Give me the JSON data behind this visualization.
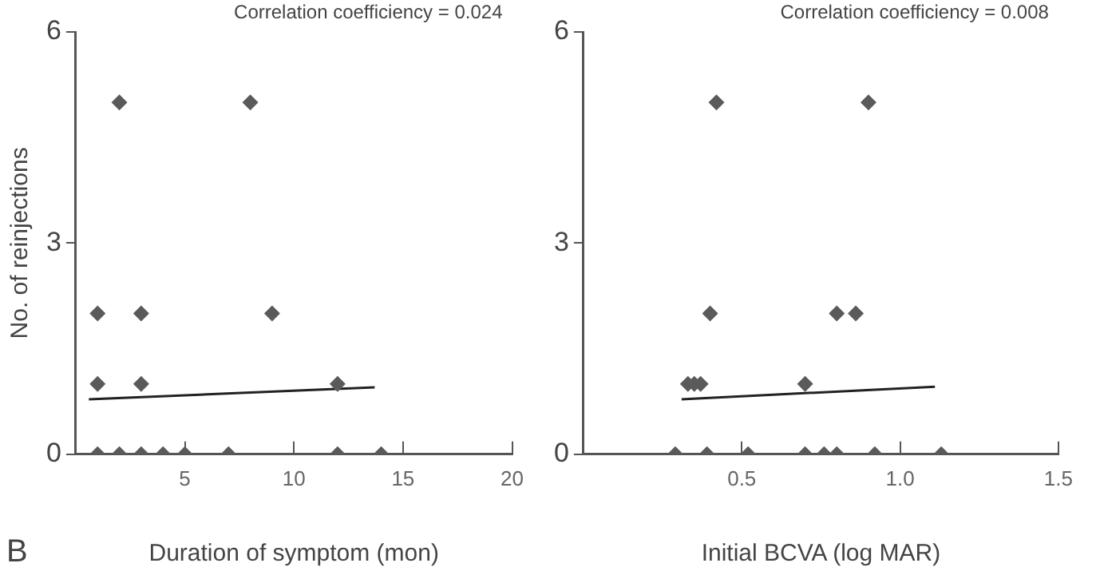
{
  "chart_data": [
    {
      "type": "scatter",
      "xlabel": "Duration of symptom (mon)",
      "ylabel": "No. of reinjections",
      "annotations": [
        "Correlation coefficiency = 0.024",
        "B"
      ],
      "marker": "diamond",
      "grid": false,
      "legend": false,
      "xlim": [
        0,
        20
      ],
      "xticks": [
        5,
        10,
        15,
        20
      ],
      "ylim": [
        0,
        6
      ],
      "yticks": [
        0,
        3,
        6
      ],
      "series": [
        {
          "color": "#5a5a5a",
          "x": [
            1,
            2,
            3,
            4,
            5,
            7,
            12,
            14,
            1,
            3,
            12,
            1,
            3,
            9,
            2,
            8
          ],
          "values": [
            0,
            0,
            0,
            0,
            0,
            0,
            0,
            0,
            1,
            1,
            1,
            2,
            2,
            2,
            5,
            5
          ]
        },
        {
          "type": "line",
          "marker": "none",
          "color": "#222222",
          "x": [
            0.6,
            13.7
          ],
          "values": [
            0.78,
            0.95
          ]
        }
      ]
    },
    {
      "type": "scatter",
      "xlabel": "Initial BCVA (log MAR)",
      "annotations": [
        "Correlation coefficiency = 0.008"
      ],
      "marker": "diamond",
      "grid": false,
      "legend": false,
      "xlim": [
        0,
        1.5
      ],
      "xticks": [
        0.5,
        {
          "value": 1,
          "label": "1.0"
        },
        1.5
      ],
      "ylim": [
        0,
        6
      ],
      "yticks": [
        0,
        3,
        6
      ],
      "series": [
        {
          "color": "#5a5a5a",
          "x": [
            0.29,
            0.39,
            0.52,
            0.7,
            0.76,
            0.8,
            0.92,
            1.13,
            0.33,
            0.35,
            0.37,
            0.7,
            0.4,
            0.8,
            0.86,
            0.42,
            0.9
          ],
          "values": [
            0,
            0,
            0,
            0,
            0,
            0,
            0,
            0,
            1,
            1,
            1,
            1,
            2,
            2,
            2,
            5,
            5
          ]
        },
        {
          "type": "line",
          "marker": "none",
          "color": "#222222",
          "x": [
            0.31,
            1.11
          ],
          "values": [
            0.78,
            0.96
          ]
        }
      ]
    }
  ]
}
